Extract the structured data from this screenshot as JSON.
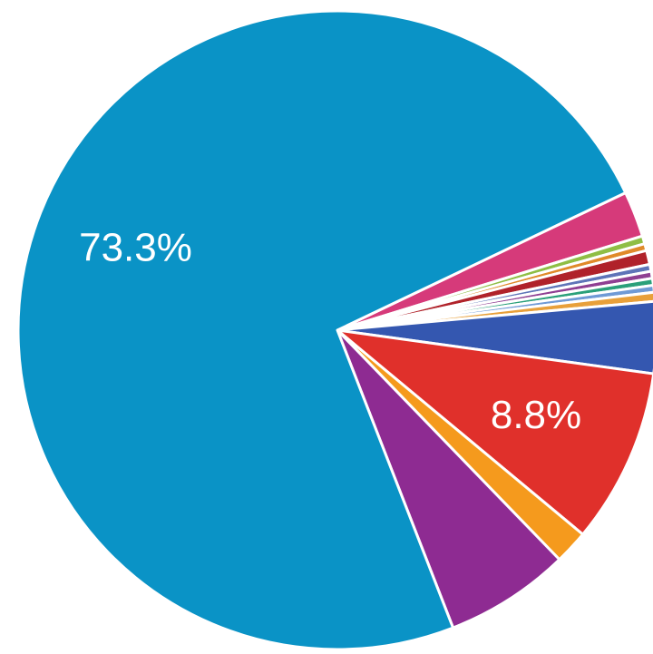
{
  "chart_data": {
    "type": "pie",
    "title": "",
    "legend": "none",
    "start_angle_deg": -25.5,
    "direction": "clockwise",
    "slices": [
      {
        "value": 2.3,
        "color": "#d63a7a",
        "label": ""
      },
      {
        "value": 0.4,
        "color": "#8fbe45",
        "label": ""
      },
      {
        "value": 0.35,
        "color": "#e08a2a",
        "label": ""
      },
      {
        "value": 0.7,
        "color": "#b0222a",
        "label": ""
      },
      {
        "value": 0.35,
        "color": "#5e74b8",
        "label": ""
      },
      {
        "value": 0.35,
        "color": "#8f3f92",
        "label": ""
      },
      {
        "value": 0.35,
        "color": "#2aa07a",
        "label": ""
      },
      {
        "value": 0.35,
        "color": "#6f9ad6",
        "label": ""
      },
      {
        "value": 0.45,
        "color": "#e8a03a",
        "label": ""
      },
      {
        "value": 3.6,
        "color": "#3457b0",
        "label": ""
      },
      {
        "value": 8.8,
        "color": "#e0302b",
        "label": "8.8%"
      },
      {
        "value": 1.7,
        "color": "#f59a1d",
        "label": ""
      },
      {
        "value": 6.3,
        "color": "#8e2b92",
        "label": ""
      },
      {
        "value": 73.3,
        "color": "#0a93c6",
        "label": "73.3%"
      }
    ]
  }
}
